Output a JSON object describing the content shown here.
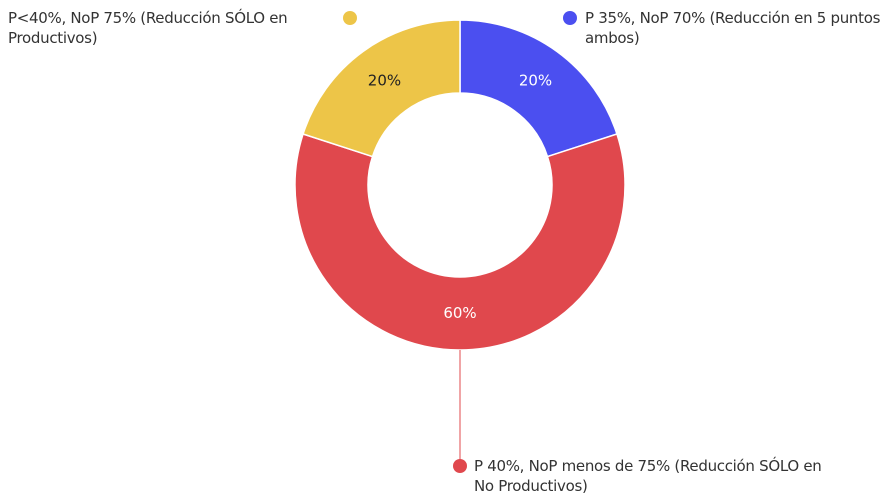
{
  "chart_data": {
    "type": "donut",
    "categories": [
      "P 35%, NoP 70% (Reducción en 5 puntos ambos)",
      "P 40%, NoP menos de 75% (Reducción SÓLO en No Productivos)",
      "P<40%, NoP 75% (Reducción SÓLO en Productivos)"
    ],
    "values": [
      20,
      60,
      20
    ],
    "value_labels": [
      "20%",
      "60%",
      "20%"
    ],
    "colors": [
      "#4b4ff0",
      "#e0484d",
      "#edc548"
    ]
  }
}
